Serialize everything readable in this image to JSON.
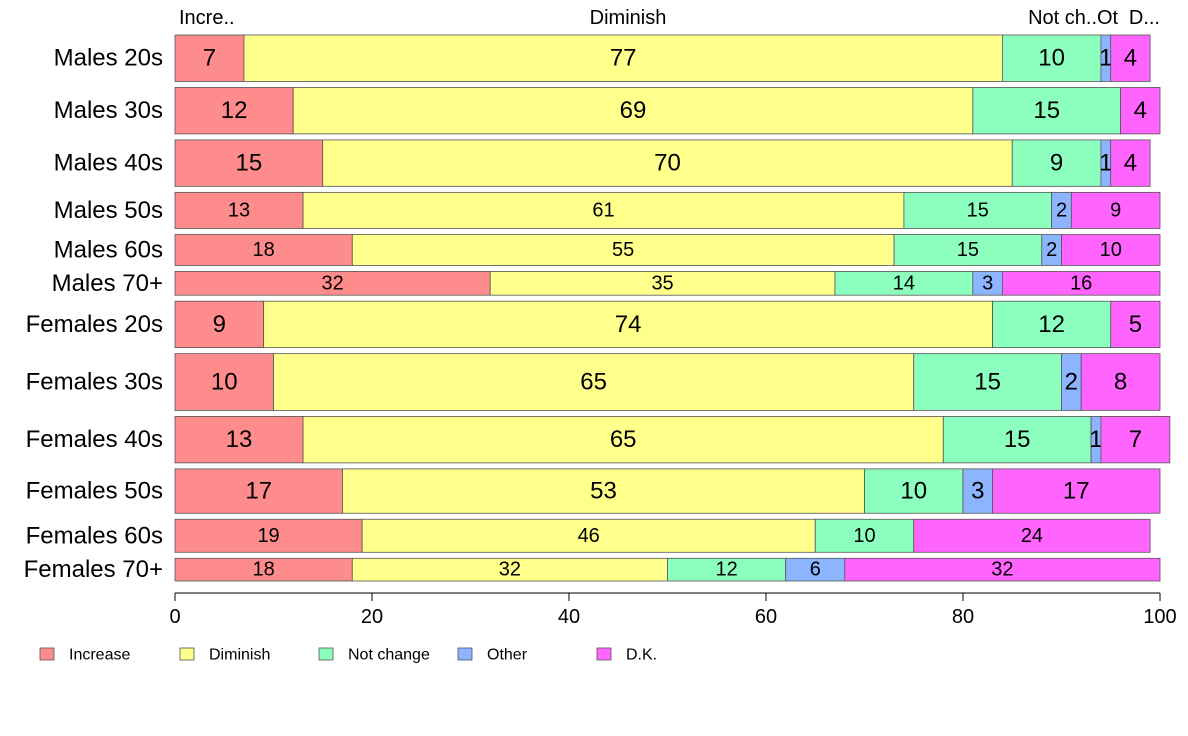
{
  "chart_data": {
    "type": "bar",
    "orientation": "horizontal",
    "stacked": true,
    "variable_width": true,
    "xlim": [
      0,
      100
    ],
    "xticks": [
      0,
      20,
      40,
      60,
      80,
      100
    ],
    "top_labels": [
      "Incre..",
      "Diminish",
      "Not ch..",
      "Ot",
      "D..."
    ],
    "legend_position": "bottom-left",
    "categories": [
      "Males 20s",
      "Males 30s",
      "Males 40s",
      "Males 50s",
      "Males 60s",
      "Males 70+",
      "Females 20s",
      "Females 30s",
      "Females 40s",
      "Females 50s",
      "Females 60s",
      "Females 70+"
    ],
    "group_sizes": [
      45,
      45,
      45,
      35,
      30,
      23,
      45,
      55,
      45,
      43,
      32,
      22
    ],
    "series": [
      {
        "name": "Increase",
        "color": "#ff8c8c",
        "values": [
          7,
          12,
          15,
          13,
          18,
          32,
          9,
          10,
          13,
          17,
          19,
          18
        ]
      },
      {
        "name": "Diminish",
        "color": "#ffff8c",
        "values": [
          77,
          69,
          70,
          61,
          55,
          35,
          74,
          65,
          65,
          53,
          46,
          32
        ]
      },
      {
        "name": "Not change",
        "color": "#8cffbe",
        "values": [
          10,
          15,
          9,
          15,
          15,
          14,
          12,
          15,
          15,
          10,
          10,
          12
        ]
      },
      {
        "name": "Other",
        "color": "#8cb4ff",
        "values": [
          1,
          0,
          1,
          2,
          2,
          3,
          0,
          2,
          1,
          3,
          0,
          6
        ]
      },
      {
        "name": "D.K.",
        "color": "#ff64ff",
        "values": [
          4,
          4,
          4,
          9,
          10,
          16,
          5,
          8,
          7,
          17,
          24,
          32
        ]
      }
    ],
    "segment_labels": [
      [
        "7",
        "77",
        "10",
        "1",
        "4"
      ],
      [
        "12",
        "69",
        "15",
        "",
        "4"
      ],
      [
        "15",
        "70",
        "9",
        "1",
        "4"
      ],
      [
        "13",
        "61",
        "15",
        "2",
        "9"
      ],
      [
        "18",
        "55",
        "15",
        "2",
        "10"
      ],
      [
        "32",
        "35",
        "14",
        "3",
        "16"
      ],
      [
        "9",
        "74",
        "12",
        "",
        "5"
      ],
      [
        "10",
        "65",
        "15",
        "2",
        "8"
      ],
      [
        "13",
        "65",
        "15",
        "1",
        "7"
      ],
      [
        "17",
        "53",
        "10",
        "3",
        "17"
      ],
      [
        "19",
        "46",
        "10",
        "",
        "24"
      ],
      [
        "18",
        "32",
        "12",
        "6",
        "32"
      ]
    ]
  }
}
